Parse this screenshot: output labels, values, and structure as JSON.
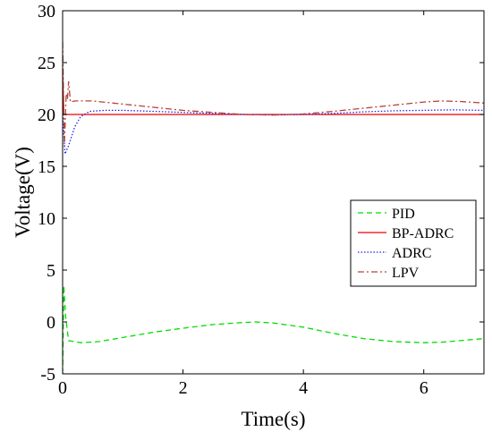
{
  "chart_data": {
    "type": "line",
    "xlabel": "Time(s)",
    "ylabel": "Voltage(V)",
    "xlim": [
      0,
      7
    ],
    "ylim": [
      -5,
      30
    ],
    "x_ticks": [
      "0",
      "2",
      "4",
      "6"
    ],
    "y_ticks": [
      "-5",
      "0",
      "5",
      "10",
      "15",
      "20",
      "25",
      "30"
    ],
    "grid": false,
    "legend_position": "right",
    "series": [
      {
        "name": "PID",
        "color": "#00dd00",
        "style": "dashed",
        "points": [
          [
            0,
            -5
          ],
          [
            0.02,
            3.5
          ],
          [
            0.05,
            0.5
          ],
          [
            0.1,
            -1.8
          ],
          [
            0.3,
            -2.0
          ],
          [
            0.6,
            -1.9
          ],
          [
            1.0,
            -1.5
          ],
          [
            1.5,
            -1.0
          ],
          [
            2.0,
            -0.6
          ],
          [
            2.5,
            -0.25
          ],
          [
            3.0,
            -0.05
          ],
          [
            3.2,
            0.0
          ],
          [
            3.5,
            -0.1
          ],
          [
            4.0,
            -0.5
          ],
          [
            4.5,
            -1.1
          ],
          [
            5.0,
            -1.6
          ],
          [
            5.5,
            -1.9
          ],
          [
            6.0,
            -2.0
          ],
          [
            6.3,
            -1.95
          ],
          [
            6.6,
            -1.8
          ],
          [
            7.0,
            -1.6
          ]
        ]
      },
      {
        "name": "BP-ADRC",
        "color": "#ee0000",
        "style": "solid",
        "points": [
          [
            0,
            24.0
          ],
          [
            0.02,
            20.0
          ],
          [
            0.05,
            20.0
          ],
          [
            1.0,
            20.0
          ],
          [
            2.0,
            20.0
          ],
          [
            3.0,
            20.0
          ],
          [
            4.0,
            20.0
          ],
          [
            5.0,
            20.0
          ],
          [
            6.0,
            20.0
          ],
          [
            7.0,
            20.0
          ]
        ]
      },
      {
        "name": "ADRC",
        "color": "#2222ee",
        "style": "dotted",
        "points": [
          [
            0,
            20.0
          ],
          [
            0.04,
            16.2
          ],
          [
            0.1,
            17.0
          ],
          [
            0.2,
            18.8
          ],
          [
            0.3,
            19.8
          ],
          [
            0.45,
            20.3
          ],
          [
            0.7,
            20.4
          ],
          [
            1.0,
            20.4
          ],
          [
            1.5,
            20.3
          ],
          [
            2.0,
            20.2
          ],
          [
            2.5,
            20.1
          ],
          [
            3.0,
            20.0
          ],
          [
            3.5,
            19.95
          ],
          [
            4.0,
            20.0
          ],
          [
            4.5,
            20.1
          ],
          [
            5.0,
            20.25
          ],
          [
            5.5,
            20.35
          ],
          [
            6.0,
            20.4
          ],
          [
            6.5,
            20.45
          ],
          [
            7.0,
            20.4
          ]
        ]
      },
      {
        "name": "LPV",
        "color": "#b5443a",
        "style": "dashdot",
        "points": [
          [
            0,
            27.0
          ],
          [
            0.03,
            17.0
          ],
          [
            0.06,
            22.0
          ],
          [
            0.08,
            21.5
          ],
          [
            0.1,
            23.2
          ],
          [
            0.13,
            21.2
          ],
          [
            0.2,
            21.3
          ],
          [
            0.5,
            21.3
          ],
          [
            1.0,
            21.0
          ],
          [
            1.5,
            20.7
          ],
          [
            2.0,
            20.4
          ],
          [
            2.5,
            20.2
          ],
          [
            3.0,
            20.0
          ],
          [
            3.5,
            19.95
          ],
          [
            4.0,
            20.05
          ],
          [
            4.5,
            20.3
          ],
          [
            5.0,
            20.6
          ],
          [
            5.5,
            20.9
          ],
          [
            6.0,
            21.2
          ],
          [
            6.3,
            21.3
          ],
          [
            6.6,
            21.25
          ],
          [
            7.0,
            21.1
          ]
        ]
      }
    ]
  }
}
